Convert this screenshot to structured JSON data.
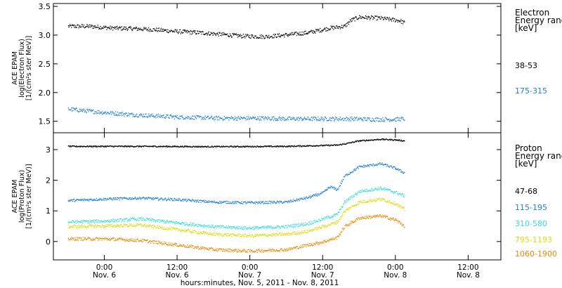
{
  "chart_data": [
    {
      "type": "scatter",
      "ylabel_lines": [
        "ACE EPAM",
        "log(Electron Flux)",
        "[1/(cm²s ster MeV)]"
      ],
      "ylim": [
        1.3,
        3.55
      ],
      "yticks": [
        1.5,
        2.0,
        2.5,
        3.0,
        3.5
      ],
      "ytick_labels": [
        "1.5",
        "2.0",
        "2.5",
        "3.0",
        "3.5"
      ],
      "legend_title_lines": [
        "Electron",
        "Energy ranges",
        "[keV]"
      ],
      "series": [
        {
          "name": "38-53",
          "color": "#000000",
          "spread": 0.035,
          "points": [
            [
              -0.5,
              3.16
            ],
            [
              -0.2,
              3.16
            ],
            [
              0.1,
              3.13
            ],
            [
              0.4,
              3.12
            ],
            [
              0.7,
              3.1
            ],
            [
              1.0,
              3.07
            ],
            [
              1.3,
              3.05
            ],
            [
              1.6,
              3.02
            ],
            [
              1.9,
              2.99
            ],
            [
              2.2,
              2.98
            ],
            [
              2.5,
              3.01
            ],
            [
              2.8,
              3.05
            ],
            [
              3.1,
              3.13
            ],
            [
              3.3,
              3.16
            ],
            [
              3.38,
              3.26
            ],
            [
              3.5,
              3.32
            ],
            [
              3.8,
              3.3
            ],
            [
              4.05,
              3.26
            ],
            [
              4.12,
              3.22
            ]
          ]
        },
        {
          "name": "175-315",
          "color": "#1f7fd8",
          "spread": 0.035,
          "points": [
            [
              -0.5,
              1.72
            ],
            [
              -0.2,
              1.68
            ],
            [
              0.1,
              1.65
            ],
            [
              0.4,
              1.62
            ],
            [
              0.7,
              1.6
            ],
            [
              1.0,
              1.58
            ],
            [
              1.3,
              1.57
            ],
            [
              1.6,
              1.56
            ],
            [
              1.9,
              1.56
            ],
            [
              2.2,
              1.56
            ],
            [
              2.5,
              1.55
            ],
            [
              2.8,
              1.55
            ],
            [
              3.1,
              1.55
            ],
            [
              3.4,
              1.55
            ],
            [
              3.7,
              1.54
            ],
            [
              4.0,
              1.54
            ],
            [
              4.12,
              1.55
            ]
          ]
        }
      ]
    },
    {
      "type": "scatter",
      "ylabel_lines": [
        "ACE EPAM",
        "log(Proton Flux)",
        "[1/(cm²s ster MeV)]"
      ],
      "ylim": [
        -0.6,
        3.55
      ],
      "yticks": [
        0,
        1,
        2,
        3
      ],
      "ytick_labels": [
        "0",
        "1",
        "2",
        "3"
      ],
      "legend_title_lines": [
        "Proton",
        "Energy ranges",
        "[keV]"
      ],
      "series": [
        {
          "name": "47-68",
          "color": "#000000",
          "spread": 0.02,
          "points": [
            [
              -0.5,
              3.12
            ],
            [
              0.5,
              3.12
            ],
            [
              1.5,
              3.11
            ],
            [
              2.5,
              3.12
            ],
            [
              3.2,
              3.16
            ],
            [
              3.3,
              3.2
            ],
            [
              3.5,
              3.3
            ],
            [
              3.8,
              3.35
            ],
            [
              4.0,
              3.33
            ],
            [
              4.12,
              3.3
            ]
          ]
        },
        {
          "name": "115-195",
          "color": "#1f7fd8",
          "spread": 0.04,
          "points": [
            [
              -0.5,
              1.35
            ],
            [
              0.0,
              1.4
            ],
            [
              0.5,
              1.43
            ],
            [
              1.0,
              1.38
            ],
            [
              1.5,
              1.3
            ],
            [
              2.0,
              1.28
            ],
            [
              2.5,
              1.3
            ],
            [
              2.8,
              1.45
            ],
            [
              3.0,
              1.6
            ],
            [
              3.1,
              1.8
            ],
            [
              3.2,
              1.7
            ],
            [
              3.3,
              2.15
            ],
            [
              3.5,
              2.45
            ],
            [
              3.8,
              2.55
            ],
            [
              4.0,
              2.4
            ],
            [
              4.12,
              2.25
            ]
          ]
        },
        {
          "name": "310-580",
          "color": "#33dddd",
          "spread": 0.05,
          "points": [
            [
              -0.5,
              0.65
            ],
            [
              0.0,
              0.68
            ],
            [
              0.5,
              0.75
            ],
            [
              1.0,
              0.62
            ],
            [
              1.5,
              0.5
            ],
            [
              2.0,
              0.45
            ],
            [
              2.5,
              0.5
            ],
            [
              2.8,
              0.6
            ],
            [
              3.0,
              0.75
            ],
            [
              3.2,
              0.9
            ],
            [
              3.3,
              1.3
            ],
            [
              3.5,
              1.65
            ],
            [
              3.8,
              1.75
            ],
            [
              4.0,
              1.62
            ],
            [
              4.12,
              1.5
            ]
          ]
        },
        {
          "name": "795-1193",
          "color": "#dddd00",
          "spread": 0.05,
          "points": [
            [
              -0.5,
              0.5
            ],
            [
              0.0,
              0.52
            ],
            [
              0.5,
              0.55
            ],
            [
              1.0,
              0.4
            ],
            [
              1.5,
              0.25
            ],
            [
              2.0,
              0.2
            ],
            [
              2.5,
              0.25
            ],
            [
              2.8,
              0.35
            ],
            [
              3.0,
              0.5
            ],
            [
              3.2,
              0.65
            ],
            [
              3.3,
              1.0
            ],
            [
              3.5,
              1.3
            ],
            [
              3.8,
              1.4
            ],
            [
              4.0,
              1.25
            ],
            [
              4.12,
              1.05
            ]
          ]
        },
        {
          "name": "1060-1900",
          "color": "#ee8800",
          "spread": 0.05,
          "points": [
            [
              -0.5,
              0.1
            ],
            [
              0.0,
              0.1
            ],
            [
              0.5,
              0.05
            ],
            [
              1.0,
              -0.1
            ],
            [
              1.5,
              -0.25
            ],
            [
              2.0,
              -0.3
            ],
            [
              2.5,
              -0.25
            ],
            [
              2.8,
              -0.1
            ],
            [
              3.0,
              0.0
            ],
            [
              3.2,
              0.15
            ],
            [
              3.3,
              0.5
            ],
            [
              3.5,
              0.78
            ],
            [
              3.8,
              0.85
            ],
            [
              4.0,
              0.72
            ],
            [
              4.12,
              0.52
            ]
          ]
        }
      ]
    }
  ],
  "x_axis": {
    "range": [
      -0.7,
      5.45
    ],
    "ticks": [
      {
        "x": 0,
        "time": "0:00",
        "date": "Nov. 6"
      },
      {
        "x": 1,
        "time": "12:00",
        "date": "Nov. 6"
      },
      {
        "x": 2,
        "time": "0:00",
        "date": "Nov. 7"
      },
      {
        "x": 3,
        "time": "12:00",
        "date": "Nov. 7"
      },
      {
        "x": 4,
        "time": "0:00",
        "date": "Nov. 8"
      },
      {
        "x": 5,
        "time": "12:00",
        "date": "Nov. 8"
      }
    ],
    "xlabel": "hours:minutes, Nov.  5, 2011 - Nov.  8, 2011"
  }
}
